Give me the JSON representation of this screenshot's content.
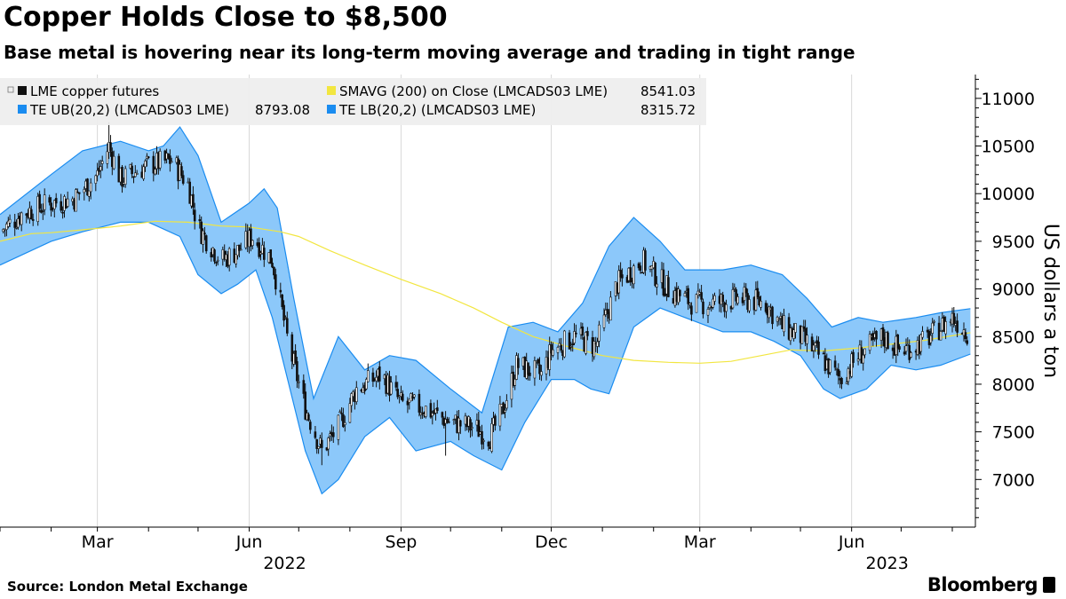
{
  "header": {
    "title": "Copper Holds Close to $8,500",
    "subtitle": "Base metal is hovering near its long-term moving average and trading in tight range"
  },
  "footer": {
    "source": "Source: London Metal Exchange",
    "brand": "Bloomberg"
  },
  "colors": {
    "band_fill": "#8cc8fa",
    "band_edge": "#1a8cf0",
    "sma": "#f2e640",
    "candle": "#111111",
    "grid": "#d8d8d8",
    "legend_bg": "#eeeeee"
  },
  "chart_data": {
    "type": "line",
    "subtype": "ohlc candlestick with bollinger bands and moving average",
    "legend": [
      {
        "label": "LME copper futures",
        "value": "",
        "color": "#111111"
      },
      {
        "label": "SMAVG (200)  on Close (LMCADS03 LME)",
        "value": "8541.03",
        "color": "#f2e640"
      },
      {
        "label": "TE UB(20,2) (LMCADS03 LME)",
        "value": "8793.08",
        "color": "#1a8cf0"
      },
      {
        "label": "TE LB(20,2) (LMCADS03 LME)",
        "value": "8315.72",
        "color": "#1a8cf0"
      }
    ],
    "ylabel": "US dollars a ton",
    "ylim": [
      6500,
      11250
    ],
    "yticks": [
      7000,
      7500,
      8000,
      8500,
      9000,
      9500,
      10000,
      10500,
      11000
    ],
    "xlim": [
      "2022-01-01",
      "2023-08-15"
    ],
    "xticks": [
      {
        "date": "2022-03-01",
        "label": "Mar"
      },
      {
        "date": "2022-06-01",
        "label": "Jun"
      },
      {
        "date": "2022-09-01",
        "label": "Sep"
      },
      {
        "date": "2022-12-01",
        "label": "Dec"
      },
      {
        "date": "2023-03-01",
        "label": "Mar"
      },
      {
        "date": "2023-06-01",
        "label": "Jun"
      }
    ],
    "year_labels": [
      {
        "date": "2022-06-01",
        "label": "2022"
      },
      {
        "date": "2023-06-01",
        "label": "2023"
      }
    ],
    "grid": true,
    "close": [
      [
        "2022-01-01",
        9600
      ],
      [
        "2022-01-15",
        9800
      ],
      [
        "2022-02-01",
        9900
      ],
      [
        "2022-02-15",
        9950
      ],
      [
        "2022-03-01",
        10200
      ],
      [
        "2022-03-08",
        10500
      ],
      [
        "2022-03-15",
        10150
      ],
      [
        "2022-04-01",
        10300
      ],
      [
        "2022-04-15",
        10350
      ],
      [
        "2022-04-25",
        10100
      ],
      [
        "2022-05-01",
        9650
      ],
      [
        "2022-05-15",
        9300
      ],
      [
        "2022-05-25",
        9400
      ],
      [
        "2022-06-03",
        9550
      ],
      [
        "2022-06-15",
        9300
      ],
      [
        "2022-06-25",
        8400
      ],
      [
        "2022-07-05",
        7750
      ],
      [
        "2022-07-15",
        7300
      ],
      [
        "2022-07-25",
        7550
      ],
      [
        "2022-08-05",
        7950
      ],
      [
        "2022-08-20",
        8100
      ],
      [
        "2022-09-01",
        7800
      ],
      [
        "2022-09-15",
        7750
      ],
      [
        "2022-10-01",
        7600
      ],
      [
        "2022-10-15",
        7550
      ],
      [
        "2022-10-25",
        7450
      ],
      [
        "2022-11-01",
        7700
      ],
      [
        "2022-11-10",
        8200
      ],
      [
        "2022-11-25",
        8100
      ],
      [
        "2022-12-01",
        8350
      ],
      [
        "2022-12-15",
        8500
      ],
      [
        "2022-12-28",
        8400
      ],
      [
        "2023-01-10",
        9050
      ],
      [
        "2023-01-25",
        9300
      ],
      [
        "2023-02-10",
        9000
      ],
      [
        "2023-02-25",
        8850
      ],
      [
        "2023-03-10",
        8850
      ],
      [
        "2023-03-25",
        8900
      ],
      [
        "2023-04-10",
        8850
      ],
      [
        "2023-04-20",
        8600
      ],
      [
        "2023-05-01",
        8500
      ],
      [
        "2023-05-15",
        8250
      ],
      [
        "2023-05-25",
        8050
      ],
      [
        "2023-06-05",
        8300
      ],
      [
        "2023-06-20",
        8500
      ],
      [
        "2023-07-01",
        8350
      ],
      [
        "2023-07-15",
        8450
      ],
      [
        "2023-07-25",
        8600
      ],
      [
        "2023-08-01",
        8700
      ],
      [
        "2023-08-10",
        8550
      ]
    ],
    "upper_band": [
      [
        "2022-01-01",
        9780
      ],
      [
        "2022-02-01",
        10200
      ],
      [
        "2022-02-20",
        10450
      ],
      [
        "2022-03-15",
        10550
      ],
      [
        "2022-04-01",
        10450
      ],
      [
        "2022-04-10",
        10500
      ],
      [
        "2022-04-20",
        10700
      ],
      [
        "2022-05-01",
        10400
      ],
      [
        "2022-05-15",
        9700
      ],
      [
        "2022-06-01",
        9900
      ],
      [
        "2022-06-10",
        10050
      ],
      [
        "2022-06-18",
        9850
      ],
      [
        "2022-06-28",
        8900
      ],
      [
        "2022-07-10",
        7850
      ],
      [
        "2022-07-25",
        8500
      ],
      [
        "2022-08-10",
        8150
      ],
      [
        "2022-08-25",
        8300
      ],
      [
        "2022-09-10",
        8250
      ],
      [
        "2022-10-01",
        7950
      ],
      [
        "2022-10-20",
        7700
      ],
      [
        "2022-11-05",
        8600
      ],
      [
        "2022-11-20",
        8650
      ],
      [
        "2022-12-05",
        8550
      ],
      [
        "2022-12-20",
        8850
      ],
      [
        "2023-01-05",
        9450
      ],
      [
        "2023-01-20",
        9750
      ],
      [
        "2023-02-05",
        9500
      ],
      [
        "2023-02-20",
        9200
      ],
      [
        "2023-03-15",
        9200
      ],
      [
        "2023-04-01",
        9250
      ],
      [
        "2023-04-20",
        9150
      ],
      [
        "2023-05-05",
        8900
      ],
      [
        "2023-05-20",
        8600
      ],
      [
        "2023-06-05",
        8700
      ],
      [
        "2023-06-20",
        8650
      ],
      [
        "2023-07-10",
        8700
      ],
      [
        "2023-07-25",
        8750
      ],
      [
        "2023-08-12",
        8793.08
      ]
    ],
    "lower_band": [
      [
        "2022-01-01",
        9250
      ],
      [
        "2022-02-01",
        9500
      ],
      [
        "2022-02-20",
        9600
      ],
      [
        "2022-03-15",
        9700
      ],
      [
        "2022-04-01",
        9700
      ],
      [
        "2022-04-20",
        9550
      ],
      [
        "2022-05-01",
        9150
      ],
      [
        "2022-05-15",
        8950
      ],
      [
        "2022-05-25",
        9050
      ],
      [
        "2022-06-05",
        9200
      ],
      [
        "2022-06-15",
        8700
      ],
      [
        "2022-06-25",
        8000
      ],
      [
        "2022-07-05",
        7300
      ],
      [
        "2022-07-15",
        6850
      ],
      [
        "2022-07-25",
        7000
      ],
      [
        "2022-08-10",
        7450
      ],
      [
        "2022-08-25",
        7650
      ],
      [
        "2022-09-10",
        7300
      ],
      [
        "2022-10-01",
        7400
      ],
      [
        "2022-10-15",
        7250
      ],
      [
        "2022-11-01",
        7100
      ],
      [
        "2022-11-15",
        7600
      ],
      [
        "2022-12-01",
        8050
      ],
      [
        "2022-12-15",
        8050
      ],
      [
        "2022-12-25",
        7950
      ],
      [
        "2023-01-05",
        7900
      ],
      [
        "2023-01-20",
        8600
      ],
      [
        "2023-02-05",
        8800
      ],
      [
        "2023-02-20",
        8700
      ],
      [
        "2023-03-15",
        8550
      ],
      [
        "2023-04-01",
        8550
      ],
      [
        "2023-04-15",
        8450
      ],
      [
        "2023-05-01",
        8300
      ],
      [
        "2023-05-15",
        7950
      ],
      [
        "2023-05-25",
        7850
      ],
      [
        "2023-06-10",
        7950
      ],
      [
        "2023-06-25",
        8200
      ],
      [
        "2023-07-10",
        8150
      ],
      [
        "2023-07-25",
        8200
      ],
      [
        "2023-08-12",
        8315.72
      ]
    ],
    "sma": [
      [
        "2022-01-01",
        9500
      ],
      [
        "2022-01-20",
        9580
      ],
      [
        "2022-02-01",
        9590
      ],
      [
        "2022-02-20",
        9620
      ],
      [
        "2022-03-15",
        9660
      ],
      [
        "2022-04-05",
        9710
      ],
      [
        "2022-04-25",
        9700
      ],
      [
        "2022-05-15",
        9660
      ],
      [
        "2022-06-01",
        9650
      ],
      [
        "2022-06-20",
        9600
      ],
      [
        "2022-07-01",
        9550
      ],
      [
        "2022-07-20",
        9400
      ],
      [
        "2022-08-10",
        9250
      ],
      [
        "2022-09-01",
        9100
      ],
      [
        "2022-09-25",
        8950
      ],
      [
        "2022-10-15",
        8800
      ],
      [
        "2022-11-01",
        8650
      ],
      [
        "2022-11-20",
        8500
      ],
      [
        "2022-12-10",
        8400
      ],
      [
        "2023-01-01",
        8300
      ],
      [
        "2023-01-20",
        8250
      ],
      [
        "2023-02-10",
        8230
      ],
      [
        "2023-03-01",
        8220
      ],
      [
        "2023-03-20",
        8240
      ],
      [
        "2023-04-10",
        8310
      ],
      [
        "2023-04-25",
        8360
      ],
      [
        "2023-05-15",
        8350
      ],
      [
        "2023-06-05",
        8380
      ],
      [
        "2023-06-25",
        8420
      ],
      [
        "2023-07-15",
        8460
      ],
      [
        "2023-08-12",
        8541.03
      ]
    ],
    "spikes": [
      {
        "date": "2022-03-08",
        "high": 10750
      },
      {
        "date": "2022-07-15",
        "low": 7150
      },
      {
        "date": "2022-09-28",
        "low": 7250
      }
    ]
  }
}
